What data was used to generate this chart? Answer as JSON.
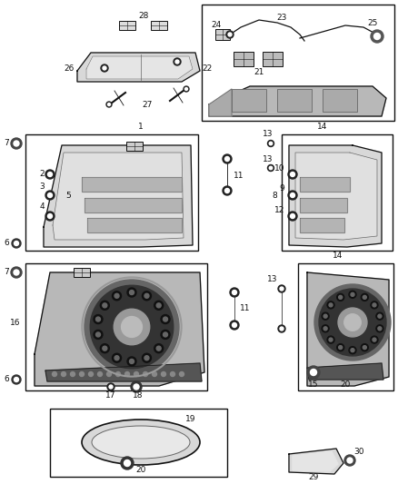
{
  "bg_color": "#ffffff",
  "fig_width": 4.38,
  "fig_height": 5.33,
  "dpi": 100,
  "dark": "#111111",
  "gray": "#666666",
  "fill_light": "#d8d8d8",
  "fill_mid": "#b8b8b8",
  "fill_dark": "#888888"
}
